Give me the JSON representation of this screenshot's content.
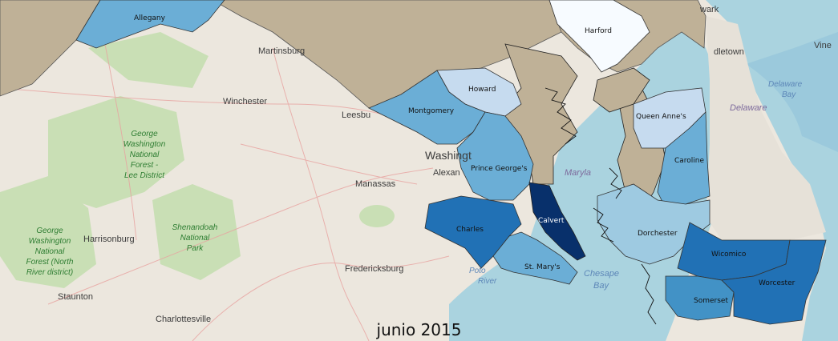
{
  "caption": "junio 2015",
  "colors": {
    "land": "#ece7de",
    "water": "#aad3df",
    "forest": "#c9dfb5",
    "neighbor_state": "#bfb197",
    "very_light": "#f7fbff",
    "light": "#c6dbef",
    "medium_light": "#9ecae1",
    "medium": "#6baed6",
    "medium_dark": "#4292c6",
    "dark": "#2171b5",
    "darkest": "#08306b"
  },
  "counties": {
    "allegany": "Allegany",
    "harford": "Harford",
    "howard": "Howard",
    "montgomery": "Montgomery",
    "queen_annes": "Queen Anne's",
    "prince_georges": "Prince George's",
    "caroline": "Caroline",
    "calvert": "Calvert",
    "charles": "Charles",
    "dorchester": "Dorchester",
    "st_marys": "St. Mary's",
    "wicomico": "Wicomico",
    "worcester": "Worcester",
    "somerset": "Somerset"
  },
  "basemap_labels": {
    "martinsburg": "Martinsburg",
    "winchester": "Winchester",
    "leesburg": "Leesbu",
    "washington": "Washingt",
    "alexandria": "Alexan",
    "manassas": "Manassas",
    "harrisonburg": "Harrisonburg",
    "fredericksburg": "Fredericksburg",
    "staunton": "Staunton",
    "charlottesville": "Charlottesville",
    "delaware": "Delaware",
    "delaware_bay_1": "Delaware",
    "delaware_bay_2": "Bay",
    "middletown": "dletown",
    "newark": "wark",
    "vineland": "Vine",
    "maryland": "Maryla",
    "chesapeake_1": "Chesape",
    "chesapeake_2": "Bay",
    "potomac_1": "Poto",
    "potomac_2": "River",
    "gw_forest_lee": [
      "George",
      "Washington",
      "National",
      "Forest -",
      "Lee District"
    ],
    "gw_forest_north": [
      "George",
      "Washington",
      "National",
      "Forest (North",
      "River district)"
    ],
    "shenandoah": [
      "Shenandoah",
      "National",
      "Park"
    ]
  }
}
